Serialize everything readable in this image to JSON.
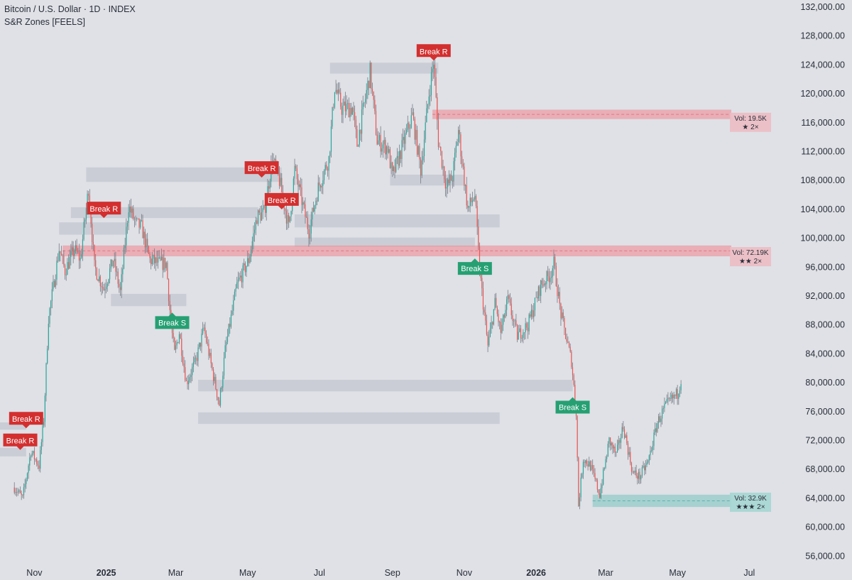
{
  "header": {
    "symbol": "Bitcoin / U.S. Dollar · 1D · INDEX",
    "indicator": "S&R Zones [FEELS]"
  },
  "colors": {
    "background": "#dfe1e6",
    "up": "#26a69a",
    "down": "#ef5350",
    "wick": "#787b86",
    "break_r_label": "#d32f2f",
    "break_s_label": "#26a073",
    "resistance_zone": "#f08c96",
    "support_zone": "#80c7c2",
    "neutral_zone": "#b8bdc6"
  },
  "chart_data": {
    "type": "candlestick",
    "ylim": [
      54500,
      133000
    ],
    "y_ticks": [
      "132,000.00",
      "128,000.00",
      "124,000.00",
      "120,000.00",
      "116,000.00",
      "112,000.00",
      "108,000.00",
      "104,000.00",
      "100,000.00",
      "96,000.00",
      "92,000.00",
      "88,000.00",
      "84,000.00",
      "80,000.00",
      "76,000.00",
      "72,000.00",
      "68,000.00",
      "64,000.00",
      "60,000.00",
      "56,000.00"
    ],
    "x_ticks": [
      {
        "label": "Nov",
        "date": "2024-11-01",
        "bold": false
      },
      {
        "label": "2025",
        "date": "2025-01-01",
        "bold": true
      },
      {
        "label": "Mar",
        "date": "2025-03-01",
        "bold": false
      },
      {
        "label": "May",
        "date": "2025-05-01",
        "bold": false
      },
      {
        "label": "Jul",
        "date": "2025-07-01",
        "bold": false
      },
      {
        "label": "Sep",
        "date": "2025-09-01",
        "bold": false
      },
      {
        "label": "Nov",
        "date": "2025-11-01",
        "bold": false
      },
      {
        "label": "2026",
        "date": "2026-01-01",
        "bold": true
      },
      {
        "label": "Mar",
        "date": "2026-03-01",
        "bold": false
      },
      {
        "label": "May",
        "date": "2026-05-01",
        "bold": false
      },
      {
        "label": "Jul",
        "date": "2026-07-01",
        "bold": false
      }
    ],
    "price_path": [
      [
        "2024-10-15",
        65500
      ],
      [
        "2024-10-22",
        64000
      ],
      [
        "2024-10-29",
        70500
      ],
      [
        "2024-11-05",
        68500
      ],
      [
        "2024-11-09",
        75000
      ],
      [
        "2024-11-13",
        89000
      ],
      [
        "2024-11-22",
        98500
      ],
      [
        "2024-11-27",
        95500
      ],
      [
        "2024-12-05",
        98500
      ],
      [
        "2024-12-10",
        97000
      ],
      [
        "2024-12-17",
        107000
      ],
      [
        "2024-12-22",
        96000
      ],
      [
        "2024-12-30",
        93000
      ],
      [
        "2025-01-07",
        97000
      ],
      [
        "2025-01-13",
        92500
      ],
      [
        "2025-01-20",
        104500
      ],
      [
        "2025-01-26",
        102000
      ],
      [
        "2025-01-31",
        101500
      ],
      [
        "2025-02-07",
        97000
      ],
      [
        "2025-02-15",
        96500
      ],
      [
        "2025-02-21",
        96500
      ],
      [
        "2025-02-25",
        88000
      ],
      [
        "2025-02-28",
        84000
      ],
      [
        "2025-03-04",
        87000
      ],
      [
        "2025-03-10",
        80000
      ],
      [
        "2025-03-18",
        83000
      ],
      [
        "2025-03-25",
        87500
      ],
      [
        "2025-03-31",
        82500
      ],
      [
        "2025-04-07",
        77000
      ],
      [
        "2025-04-12",
        84500
      ],
      [
        "2025-04-22",
        93500
      ],
      [
        "2025-05-02",
        97000
      ],
      [
        "2025-05-09",
        103000
      ],
      [
        "2025-05-15",
        103500
      ],
      [
        "2025-05-22",
        111000
      ],
      [
        "2025-05-28",
        108000
      ],
      [
        "2025-06-05",
        101500
      ],
      [
        "2025-06-10",
        109500
      ],
      [
        "2025-06-17",
        104500
      ],
      [
        "2025-06-22",
        101000
      ],
      [
        "2025-06-30",
        107000
      ],
      [
        "2025-07-09",
        111000
      ],
      [
        "2025-07-14",
        121000
      ],
      [
        "2025-07-20",
        118000
      ],
      [
        "2025-07-29",
        118000
      ],
      [
        "2025-08-02",
        113000
      ],
      [
        "2025-08-13",
        123000
      ],
      [
        "2025-08-19",
        113500
      ],
      [
        "2025-08-28",
        112500
      ],
      [
        "2025-09-01",
        108500
      ],
      [
        "2025-09-10",
        113000
      ],
      [
        "2025-09-18",
        117000
      ],
      [
        "2025-09-25",
        109500
      ],
      [
        "2025-10-02",
        120000
      ],
      [
        "2025-10-06",
        124500
      ],
      [
        "2025-10-10",
        113500
      ],
      [
        "2025-10-17",
        107000
      ],
      [
        "2025-10-22",
        108500
      ],
      [
        "2025-10-27",
        115000
      ],
      [
        "2025-11-04",
        104000
      ],
      [
        "2025-11-10",
        106000
      ],
      [
        "2025-11-14",
        95500
      ],
      [
        "2025-11-21",
        85000
      ],
      [
        "2025-11-27",
        91000
      ],
      [
        "2025-12-02",
        87000
      ],
      [
        "2025-12-08",
        91500
      ],
      [
        "2025-12-16",
        86500
      ],
      [
        "2025-12-25",
        88000
      ],
      [
        "2026-01-05",
        93500
      ],
      [
        "2026-01-13",
        95000
      ],
      [
        "2026-01-16",
        96500
      ],
      [
        "2026-01-22",
        89500
      ],
      [
        "2026-01-31",
        83000
      ],
      [
        "2026-02-04",
        76000
      ],
      [
        "2026-02-06",
        63000
      ],
      [
        "2026-02-10",
        69500
      ],
      [
        "2026-02-16",
        68500
      ],
      [
        "2026-02-24",
        64500
      ],
      [
        "2026-03-04",
        72000
      ],
      [
        "2026-03-10",
        70000
      ],
      [
        "2026-03-16",
        74000
      ],
      [
        "2026-03-24",
        67500
      ],
      [
        "2026-03-30",
        67000
      ],
      [
        "2026-04-06",
        69000
      ],
      [
        "2026-04-14",
        74500
      ],
      [
        "2026-04-20",
        76500
      ],
      [
        "2026-04-25",
        77500
      ],
      [
        "2026-05-01",
        78500
      ],
      [
        "2026-05-04",
        80500
      ]
    ],
    "zones": [
      {
        "type": "neutral",
        "start": "2024-10-01",
        "end": "2024-10-25",
        "low": 73500,
        "high": 74500
      },
      {
        "type": "neutral",
        "start": "2024-10-01",
        "end": "2024-10-25",
        "low": 69800,
        "high": 71000
      },
      {
        "type": "neutral",
        "start": "2024-12-15",
        "end": "2025-05-30",
        "low": 107800,
        "high": 109800
      },
      {
        "type": "neutral",
        "start": "2024-12-02",
        "end": "2025-05-10",
        "low": 102800,
        "high": 104300
      },
      {
        "type": "neutral",
        "start": "2024-11-22",
        "end": "2025-01-18",
        "low": 100500,
        "high": 102200
      },
      {
        "type": "neutral",
        "start": "2025-01-05",
        "end": "2025-03-10",
        "low": 90600,
        "high": 92300
      },
      {
        "type": "neutral",
        "start": "2025-07-10",
        "end": "2025-10-10",
        "low": 122800,
        "high": 124300
      },
      {
        "type": "neutral",
        "start": "2025-08-30",
        "end": "2025-11-01",
        "low": 107300,
        "high": 108800
      },
      {
        "type": "neutral",
        "start": "2025-06-10",
        "end": "2025-12-01",
        "low": 101500,
        "high": 103300
      },
      {
        "type": "neutral",
        "start": "2025-06-10",
        "end": "2025-11-10",
        "low": 98800,
        "high": 100100
      },
      {
        "type": "neutral",
        "start": "2025-03-20",
        "end": "2026-02-01",
        "low": 78800,
        "high": 80400
      },
      {
        "type": "neutral",
        "start": "2025-03-20",
        "end": "2025-12-01",
        "low": 74300,
        "high": 75900
      },
      {
        "type": "resistance",
        "start": "2025-10-05",
        "end": "2026-08-15",
        "low": 116500,
        "high": 117800
      },
      {
        "type": "resistance",
        "start": "2024-11-25",
        "end": "2026-08-15",
        "low": 97500,
        "high": 99000
      },
      {
        "type": "support",
        "start": "2026-02-18",
        "end": "2026-08-15",
        "low": 62800,
        "high": 64500
      }
    ],
    "vol_labels": [
      {
        "text": "Vol: 19.5K",
        "stars": "★ 2×",
        "price": 116200,
        "type": "resistance"
      },
      {
        "text": "Vol: 72.19K",
        "stars": "★★ 2×",
        "price": 97600,
        "type": "resistance"
      },
      {
        "text": "Vol: 32.9K",
        "stars": "★★★ 2×",
        "price": 63600,
        "type": "support"
      }
    ],
    "break_labels": [
      {
        "text": "Break R",
        "date": "2024-10-25",
        "price": 73700,
        "type": "R"
      },
      {
        "text": "Break R",
        "date": "2024-10-20",
        "price": 70700,
        "type": "R"
      },
      {
        "text": "Break R",
        "date": "2024-12-30",
        "price": 102800,
        "type": "R"
      },
      {
        "text": "Break S",
        "date": "2025-02-26",
        "price": 89700,
        "type": "S"
      },
      {
        "text": "Break R",
        "date": "2025-05-13",
        "price": 108400,
        "type": "R"
      },
      {
        "text": "Break R",
        "date": "2025-05-30",
        "price": 104000,
        "type": "R"
      },
      {
        "text": "Break R",
        "date": "2025-10-06",
        "price": 124600,
        "type": "R"
      },
      {
        "text": "Break S",
        "date": "2025-11-10",
        "price": 97200,
        "type": "S"
      },
      {
        "text": "Break S",
        "date": "2026-02-01",
        "price": 78000,
        "type": "S"
      }
    ]
  }
}
